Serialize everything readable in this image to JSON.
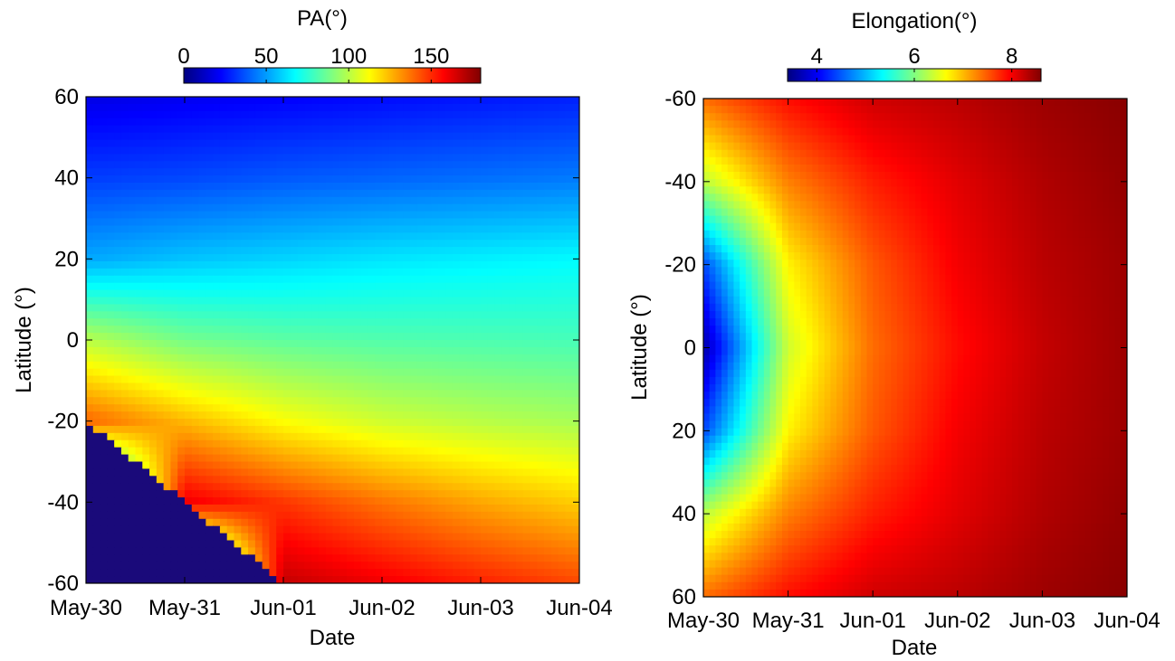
{
  "chart_data": [
    {
      "type": "heatmap",
      "xlabel": "Date",
      "ylabel": "Latitude (°)",
      "x_ticks": [
        "May-30",
        "May-31",
        "Jun-01",
        "Jun-02",
        "Jun-03",
        "Jun-04"
      ],
      "y_ticks": [
        "60",
        "40",
        "20",
        "0",
        "-20",
        "-40",
        "-60"
      ],
      "xlim": [
        "May-30",
        "Jun-04"
      ],
      "ylim": [
        -60,
        60
      ],
      "y_direction": "up",
      "grid": false,
      "colormap": "jet",
      "colorbar": {
        "title": "PA(°)",
        "ticks": [
          "0",
          "50",
          "100",
          "150"
        ],
        "range": [
          0,
          180
        ],
        "placement": "top"
      },
      "values": {
        "units": "PA(°)",
        "rows_latitude": [
          60,
          40,
          20,
          0,
          -20,
          -40,
          -60
        ],
        "columns_date": [
          "May-30",
          "May-31",
          "Jun-01",
          "Jun-02",
          "Jun-03",
          "Jun-04"
        ],
        "grid": [
          [
            18,
            20,
            22,
            24,
            26,
            28
          ],
          [
            33,
            35,
            38,
            40,
            42,
            44
          ],
          [
            52,
            57,
            60,
            63,
            65,
            67
          ],
          [
            100,
            88,
            84,
            82,
            81,
            80
          ],
          [
            140,
            125,
            112,
            104,
            100,
            97
          ],
          [
            0,
            160,
            148,
            137,
            128,
            121
          ],
          [
            0,
            0,
            168,
            160,
            152,
            145
          ]
        ]
      },
      "masked_region": {
        "value": 0,
        "boundary": [
          [
            "May-30",
            -20
          ],
          [
            "May-31",
            -40
          ],
          [
            "Jun-01",
            -60
          ]
        ]
      }
    },
    {
      "type": "heatmap",
      "xlabel": "Date",
      "ylabel": "Latitude (°)",
      "x_ticks": [
        "May-30",
        "May-31",
        "Jun-01",
        "Jun-02",
        "Jun-03",
        "Jun-04"
      ],
      "y_ticks": [
        "-60",
        "-40",
        "-20",
        "0",
        "20",
        "40",
        "60"
      ],
      "xlim": [
        "May-30",
        "Jun-04"
      ],
      "ylim": [
        -60,
        60
      ],
      "y_direction": "down",
      "grid": false,
      "colormap": "jet",
      "colorbar": {
        "title": "Elongation(°)",
        "ticks": [
          "4",
          "6",
          "8"
        ],
        "range": [
          3.4,
          8.6
        ],
        "placement": "top"
      },
      "values": {
        "units": "Elongation(°)",
        "rows_latitude": [
          -60,
          -40,
          -20,
          0,
          20,
          40,
          60
        ],
        "columns_date": [
          "May-30",
          "May-31",
          "Jun-01",
          "Jun-02",
          "Jun-03",
          "Jun-04"
        ],
        "grid": [
          [
            7.4,
            7.9,
            8.2,
            8.3,
            8.45,
            8.55
          ],
          [
            6.3,
            7.3,
            7.8,
            8.1,
            8.35,
            8.5
          ],
          [
            4.4,
            6.7,
            7.5,
            8.0,
            8.3,
            8.45
          ],
          [
            3.6,
            6.4,
            7.4,
            7.9,
            8.25,
            8.45
          ],
          [
            4.4,
            6.7,
            7.5,
            8.0,
            8.3,
            8.45
          ],
          [
            6.3,
            7.3,
            7.8,
            8.1,
            8.35,
            8.5
          ],
          [
            7.4,
            7.9,
            8.2,
            8.3,
            8.45,
            8.55
          ]
        ]
      }
    }
  ]
}
